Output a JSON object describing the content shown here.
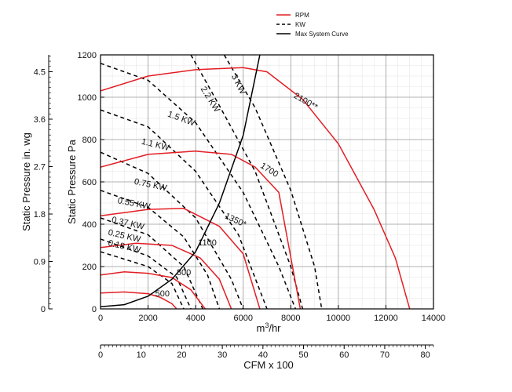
{
  "chart_data": {
    "type": "line",
    "title": "",
    "xlabel": "m³/hr",
    "ylabel": "Static Pressure Pa",
    "xlim": [
      0,
      14000
    ],
    "ylim": [
      0,
      1200
    ],
    "xticks": [
      0,
      2000,
      4000,
      6000,
      8000,
      10000,
      12000,
      14000
    ],
    "yticks": [
      0,
      200,
      400,
      600,
      800,
      1000,
      1200
    ],
    "xlabel_unit": "m",
    "xlabel_sup": "3",
    "xlabel_rest": "/hr",
    "secondary_x": {
      "label": "CFM x 100",
      "range": [
        0,
        82
      ],
      "ticks": [
        0,
        10,
        20,
        30,
        40,
        50,
        60,
        70,
        80
      ]
    },
    "secondary_y": {
      "label": "Static Pressure in. wg",
      "range": [
        0,
        4.82
      ],
      "ticks": [
        "0",
        "0.9",
        "1.8",
        "2.7",
        "3.6",
        "4.5"
      ],
      "tick_values": [
        0,
        0.9,
        1.8,
        2.7,
        3.6,
        4.5
      ]
    },
    "legend": {
      "position": "top-right",
      "entries": [
        {
          "name": "RPM",
          "style": "solid",
          "color": "#e31e24"
        },
        {
          "name": "KW",
          "style": "dashed",
          "color": "#000000"
        },
        {
          "name": "Max System Curve",
          "style": "solid",
          "color": "#000000"
        }
      ]
    },
    "rpm_curves": [
      {
        "label": "500",
        "points": [
          [
            0,
            75
          ],
          [
            1000,
            80
          ],
          [
            2000,
            72
          ],
          [
            2500,
            55
          ],
          [
            3000,
            25
          ],
          [
            3200,
            0
          ]
        ]
      },
      {
        "label": "800",
        "points": [
          [
            0,
            160
          ],
          [
            1000,
            175
          ],
          [
            2000,
            168
          ],
          [
            3000,
            148
          ],
          [
            3800,
            90
          ],
          [
            4400,
            0
          ]
        ]
      },
      {
        "label": "1100",
        "points": [
          [
            0,
            290
          ],
          [
            1500,
            310
          ],
          [
            3000,
            300
          ],
          [
            4200,
            240
          ],
          [
            5000,
            140
          ],
          [
            5500,
            0
          ]
        ]
      },
      {
        "label": "1350*",
        "points": [
          [
            0,
            440
          ],
          [
            2000,
            470
          ],
          [
            3500,
            475
          ],
          [
            5000,
            390
          ],
          [
            6000,
            260
          ],
          [
            6700,
            0
          ]
        ]
      },
      {
        "label": "1700",
        "points": [
          [
            0,
            670
          ],
          [
            2000,
            730
          ],
          [
            4000,
            745
          ],
          [
            5500,
            730
          ],
          [
            6500,
            670
          ],
          [
            7500,
            550
          ],
          [
            8400,
            0
          ]
        ]
      },
      {
        "label": "2100**",
        "points": [
          [
            0,
            1030
          ],
          [
            2000,
            1100
          ],
          [
            4000,
            1130
          ],
          [
            6000,
            1140
          ],
          [
            7000,
            1120
          ],
          [
            8500,
            990
          ],
          [
            10000,
            780
          ],
          [
            11500,
            470
          ],
          [
            12400,
            240
          ],
          [
            13000,
            0
          ]
        ]
      }
    ],
    "kw_curves": [
      {
        "label": "0.18 KW",
        "points": [
          [
            0,
            270
          ],
          [
            2000,
            200
          ],
          [
            3000,
            120
          ],
          [
            3500,
            0
          ]
        ]
      },
      {
        "label": "0.25 KW",
        "points": [
          [
            0,
            330
          ],
          [
            2000,
            250
          ],
          [
            3200,
            150
          ],
          [
            3800,
            0
          ]
        ]
      },
      {
        "label": "0.37 KW",
        "points": [
          [
            0,
            430
          ],
          [
            2000,
            350
          ],
          [
            3500,
            200
          ],
          [
            4300,
            0
          ]
        ]
      },
      {
        "label": "0.55 KW",
        "points": [
          [
            0,
            560
          ],
          [
            2000,
            480
          ],
          [
            3500,
            340
          ],
          [
            4500,
            160
          ],
          [
            5000,
            0
          ]
        ]
      },
      {
        "label": "0.75 KW",
        "points": [
          [
            0,
            740
          ],
          [
            2000,
            640
          ],
          [
            4000,
            430
          ],
          [
            5500,
            140
          ],
          [
            6000,
            0
          ]
        ]
      },
      {
        "label": "1.1 KW",
        "points": [
          [
            0,
            940
          ],
          [
            2000,
            860
          ],
          [
            4000,
            650
          ],
          [
            5800,
            350
          ],
          [
            7000,
            0
          ]
        ]
      },
      {
        "label": "1.5 KW",
        "points": [
          [
            0,
            1160
          ],
          [
            2000,
            1080
          ],
          [
            4000,
            880
          ],
          [
            6000,
            550
          ],
          [
            7500,
            200
          ],
          [
            8200,
            0
          ]
        ]
      },
      {
        "label": "2.2 KW",
        "points": [
          [
            3800,
            1200
          ],
          [
            5000,
            960
          ],
          [
            6500,
            650
          ],
          [
            8000,
            200
          ],
          [
            8500,
            0
          ]
        ]
      },
      {
        "label": "3 KW",
        "points": [
          [
            5200,
            1200
          ],
          [
            6500,
            950
          ],
          [
            8000,
            560
          ],
          [
            9000,
            200
          ],
          [
            9300,
            0
          ]
        ]
      }
    ],
    "system_curve": {
      "label": "Max System Curve",
      "points": [
        [
          0,
          10
        ],
        [
          1000,
          20
        ],
        [
          2000,
          60
        ],
        [
          3000,
          140
        ],
        [
          4000,
          270
        ],
        [
          5000,
          500
        ],
        [
          6000,
          820
        ],
        [
          6700,
          1200
        ]
      ]
    }
  }
}
